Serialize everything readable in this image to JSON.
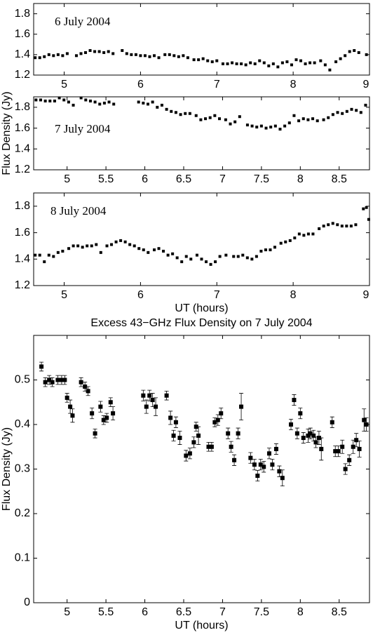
{
  "chart_data": [
    {
      "type": "scatter",
      "annotation": "6 July 2004",
      "x": [
        4.62,
        4.68,
        4.74,
        4.8,
        4.86,
        4.92,
        4.98,
        5.04,
        5.16,
        5.22,
        5.28,
        5.34,
        5.4,
        5.46,
        5.52,
        5.58,
        5.64,
        5.76,
        5.82,
        5.88,
        5.94,
        6.0,
        6.06,
        6.12,
        6.18,
        6.24,
        6.32,
        6.38,
        6.44,
        6.5,
        6.56,
        6.62,
        6.7,
        6.76,
        6.82,
        6.88,
        6.94,
        7.0,
        7.08,
        7.14,
        7.2,
        7.26,
        7.32,
        7.38,
        7.44,
        7.5,
        7.56,
        7.62,
        7.68,
        7.74,
        7.8,
        7.86,
        7.92,
        7.98,
        8.04,
        8.1,
        8.16,
        8.22,
        8.28,
        8.36,
        8.42,
        8.48,
        8.56,
        8.62,
        8.68,
        8.74,
        8.8,
        8.86,
        8.96
      ],
      "values": [
        1.37,
        1.37,
        1.38,
        1.4,
        1.39,
        1.4,
        1.39,
        1.41,
        1.39,
        1.41,
        1.42,
        1.44,
        1.43,
        1.43,
        1.42,
        1.43,
        1.41,
        1.44,
        1.41,
        1.4,
        1.4,
        1.39,
        1.39,
        1.38,
        1.39,
        1.37,
        1.4,
        1.4,
        1.39,
        1.38,
        1.39,
        1.37,
        1.35,
        1.35,
        1.36,
        1.34,
        1.33,
        1.34,
        1.31,
        1.31,
        1.32,
        1.31,
        1.31,
        1.3,
        1.32,
        1.31,
        1.34,
        1.32,
        1.29,
        1.31,
        1.28,
        1.32,
        1.33,
        1.3,
        1.35,
        1.34,
        1.31,
        1.32,
        1.32,
        1.34,
        1.3,
        1.25,
        1.33,
        1.36,
        1.39,
        1.43,
        1.44,
        1.42,
        1.4
      ],
      "color": "#000000",
      "xlim": [
        4.6,
        9.0
      ],
      "ylim": [
        1.2,
        1.9
      ],
      "xticks": [
        5,
        6,
        7,
        8,
        9
      ],
      "yticks": [
        1.2,
        1.4,
        1.6,
        1.8
      ]
    },
    {
      "type": "scatter",
      "annotation": "7 July 2004",
      "ylabel": "Flux Density (Jy)",
      "x": [
        4.6,
        4.66,
        4.72,
        4.78,
        4.84,
        4.9,
        4.96,
        5.02,
        5.08,
        5.18,
        5.24,
        5.3,
        5.36,
        5.42,
        5.48,
        5.54,
        5.6,
        5.92,
        5.98,
        6.04,
        6.1,
        6.16,
        6.22,
        6.28,
        6.34,
        6.4,
        6.46,
        6.52,
        6.58,
        6.66,
        6.72,
        6.78,
        6.84,
        6.9,
        6.96,
        7.04,
        7.1,
        7.16,
        7.22,
        7.32,
        7.38,
        7.44,
        7.5,
        7.56,
        7.62,
        7.68,
        7.74,
        7.8,
        7.86,
        7.92,
        7.98,
        8.04,
        8.1,
        8.16,
        8.22,
        8.3,
        8.36,
        8.42,
        8.48,
        8.54,
        8.6,
        8.66,
        8.72,
        8.78,
        8.84
      ],
      "values": [
        1.87,
        1.87,
        1.86,
        1.86,
        1.86,
        1.89,
        1.87,
        1.85,
        1.82,
        1.89,
        1.87,
        1.86,
        1.85,
        1.83,
        1.84,
        1.85,
        1.83,
        1.85,
        1.84,
        1.83,
        1.85,
        1.8,
        1.82,
        1.78,
        1.76,
        1.75,
        1.73,
        1.74,
        1.74,
        1.72,
        1.68,
        1.69,
        1.7,
        1.72,
        1.69,
        1.68,
        1.64,
        1.66,
        1.71,
        1.63,
        1.62,
        1.61,
        1.62,
        1.6,
        1.61,
        1.62,
        1.59,
        1.62,
        1.65,
        1.72,
        1.67,
        1.69,
        1.68,
        1.69,
        1.67,
        1.68,
        1.7,
        1.73,
        1.75,
        1.74,
        1.76,
        1.78,
        1.77,
        1.75,
        1.82
      ],
      "color": "#000000",
      "xlim": [
        4.57,
        8.89
      ],
      "ylim": [
        1.2,
        1.9
      ],
      "xticks": [
        5,
        5.5,
        6,
        6.5,
        7,
        7.5,
        8,
        8.5
      ],
      "yticks": [
        1.2,
        1.4,
        1.6,
        1.8
      ]
    },
    {
      "type": "scatter",
      "annotation": "8 July 2004",
      "xlabel": "UT (hours)",
      "x": [
        4.62,
        4.68,
        4.74,
        4.8,
        4.86,
        4.92,
        4.98,
        5.06,
        5.12,
        5.18,
        5.24,
        5.3,
        5.36,
        5.42,
        5.48,
        5.56,
        5.62,
        5.68,
        5.74,
        5.8,
        5.86,
        5.92,
        5.98,
        6.04,
        6.1,
        6.18,
        6.24,
        6.3,
        6.36,
        6.42,
        6.48,
        6.54,
        6.6,
        6.66,
        6.74,
        6.8,
        6.86,
        6.92,
        6.98,
        7.04,
        7.12,
        7.22,
        7.28,
        7.34,
        7.4,
        7.46,
        7.52,
        7.58,
        7.64,
        7.7,
        7.76,
        7.84,
        7.9,
        7.96,
        8.02,
        8.08,
        8.14,
        8.2,
        8.26,
        8.34,
        8.4,
        8.46,
        8.52,
        8.58,
        8.64,
        8.7,
        8.76,
        8.82,
        8.92,
        8.96,
        8.99
      ],
      "values": [
        1.43,
        1.43,
        1.38,
        1.43,
        1.42,
        1.45,
        1.46,
        1.48,
        1.5,
        1.5,
        1.49,
        1.5,
        1.5,
        1.51,
        1.45,
        1.5,
        1.51,
        1.53,
        1.54,
        1.53,
        1.51,
        1.5,
        1.48,
        1.47,
        1.45,
        1.47,
        1.48,
        1.46,
        1.43,
        1.44,
        1.41,
        1.38,
        1.42,
        1.4,
        1.43,
        1.4,
        1.38,
        1.36,
        1.38,
        1.42,
        1.43,
        1.42,
        1.42,
        1.43,
        1.41,
        1.4,
        1.42,
        1.46,
        1.47,
        1.47,
        1.49,
        1.52,
        1.53,
        1.54,
        1.56,
        1.59,
        1.58,
        1.59,
        1.59,
        1.63,
        1.65,
        1.66,
        1.67,
        1.66,
        1.65,
        1.65,
        1.65,
        1.66,
        1.78,
        1.79,
        1.7
      ],
      "color": "#000000",
      "xlim": [
        4.6,
        9.0
      ],
      "ylim": [
        1.2,
        1.9
      ],
      "xticks": [
        5,
        6,
        7,
        8,
        9
      ],
      "yticks": [
        1.2,
        1.4,
        1.6,
        1.8
      ]
    },
    {
      "type": "scatter",
      "title": "Excess 43−GHz Flux Density on 7 July 2004",
      "xlabel": "UT (hours)",
      "ylabel": "Flux Density (Jy)",
      "x": [
        4.67,
        4.72,
        4.77,
        4.81,
        4.88,
        4.93,
        4.97,
        5.0,
        5.04,
        5.07,
        5.18,
        5.23,
        5.27,
        5.32,
        5.36,
        5.43,
        5.47,
        5.51,
        5.56,
        5.59,
        5.98,
        6.02,
        6.06,
        6.1,
        6.14,
        6.28,
        6.33,
        6.37,
        6.4,
        6.45,
        6.53,
        6.58,
        6.63,
        6.66,
        6.69,
        6.82,
        6.86,
        6.9,
        6.94,
        6.98,
        7.07,
        7.11,
        7.15,
        7.2,
        7.24,
        7.36,
        7.41,
        7.45,
        7.49,
        7.53,
        7.6,
        7.64,
        7.69,
        7.73,
        7.77,
        7.88,
        7.92,
        7.96,
        8.0,
        8.04,
        8.1,
        8.13,
        8.17,
        8.2,
        8.24,
        8.27,
        8.41,
        8.45,
        8.49,
        8.54,
        8.58,
        8.63,
        8.68,
        8.72,
        8.76,
        8.82,
        8.85
      ],
      "values": [
        0.53,
        0.495,
        0.5,
        0.495,
        0.5,
        0.5,
        0.5,
        0.46,
        0.44,
        0.42,
        0.495,
        0.485,
        0.475,
        0.425,
        0.38,
        0.44,
        0.41,
        0.415,
        0.45,
        0.425,
        0.465,
        0.44,
        0.465,
        0.455,
        0.44,
        0.465,
        0.415,
        0.375,
        0.405,
        0.37,
        0.33,
        0.335,
        0.36,
        0.395,
        0.375,
        0.35,
        0.35,
        0.405,
        0.41,
        0.425,
        0.38,
        0.35,
        0.32,
        0.38,
        0.44,
        0.325,
        0.31,
        0.285,
        0.31,
        0.305,
        0.335,
        0.31,
        0.345,
        0.295,
        0.28,
        0.4,
        0.455,
        0.38,
        0.425,
        0.37,
        0.375,
        0.38,
        0.375,
        0.36,
        0.37,
        0.345,
        0.405,
        0.34,
        0.34,
        0.35,
        0.3,
        0.32,
        0.35,
        0.365,
        0.345,
        0.41,
        0.4
      ],
      "errors": [
        0.01,
        0.01,
        0.01,
        0.01,
        0.01,
        0.01,
        0.01,
        0.01,
        0.015,
        0.015,
        0.01,
        0.01,
        0.01,
        0.012,
        0.01,
        0.012,
        0.01,
        0.01,
        0.01,
        0.015,
        0.012,
        0.015,
        0.012,
        0.015,
        0.02,
        0.01,
        0.015,
        0.012,
        0.012,
        0.015,
        0.012,
        0.012,
        0.012,
        0.01,
        0.02,
        0.01,
        0.01,
        0.01,
        0.012,
        0.012,
        0.012,
        0.012,
        0.012,
        0.012,
        0.03,
        0.012,
        0.012,
        0.012,
        0.012,
        0.012,
        0.012,
        0.012,
        0.012,
        0.012,
        0.018,
        0.012,
        0.012,
        0.012,
        0.012,
        0.012,
        0.015,
        0.012,
        0.012,
        0.012,
        0.015,
        0.025,
        0.012,
        0.012,
        0.012,
        0.015,
        0.012,
        0.012,
        0.015,
        0.015,
        0.018,
        0.025,
        0.015
      ],
      "color": "#000000",
      "xlim": [
        4.57,
        8.89
      ],
      "ylim": [
        0,
        0.6
      ],
      "xticks": [
        5,
        5.5,
        6,
        6.5,
        7,
        7.5,
        8,
        8.5
      ],
      "yticks": [
        0,
        0.1,
        0.2,
        0.3,
        0.4,
        0.5
      ]
    }
  ]
}
